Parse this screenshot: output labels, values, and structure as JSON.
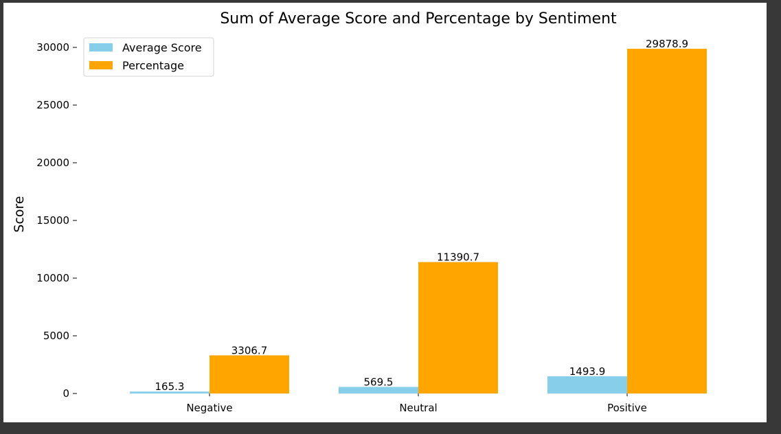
{
  "chart_data": {
    "type": "bar",
    "title": "Sum of Average Score and Percentage by Sentiment",
    "xlabel": "",
    "ylabel": "Score",
    "categories": [
      "Negative",
      "Neutral",
      "Positive"
    ],
    "series": [
      {
        "name": "Average Score",
        "values": [
          165.3,
          569.5,
          1493.9
        ],
        "labels": [
          "165.3",
          "569.5",
          "1493.9"
        ],
        "color": "#87CEEB"
      },
      {
        "name": "Percentage",
        "values": [
          3306.7,
          11390.7,
          29878.9
        ],
        "labels": [
          "3306.7",
          "11390.7",
          "29878.9"
        ],
        "color": "#FFA500"
      }
    ],
    "ylim": [
      0,
      30000
    ],
    "yticks": [
      0,
      5000,
      10000,
      15000,
      20000,
      25000,
      30000
    ],
    "ytick_labels": [
      "0",
      "5000",
      "10000",
      "15000",
      "20000",
      "25000",
      "30000"
    ],
    "grid": false,
    "legend_position": "top-left"
  }
}
